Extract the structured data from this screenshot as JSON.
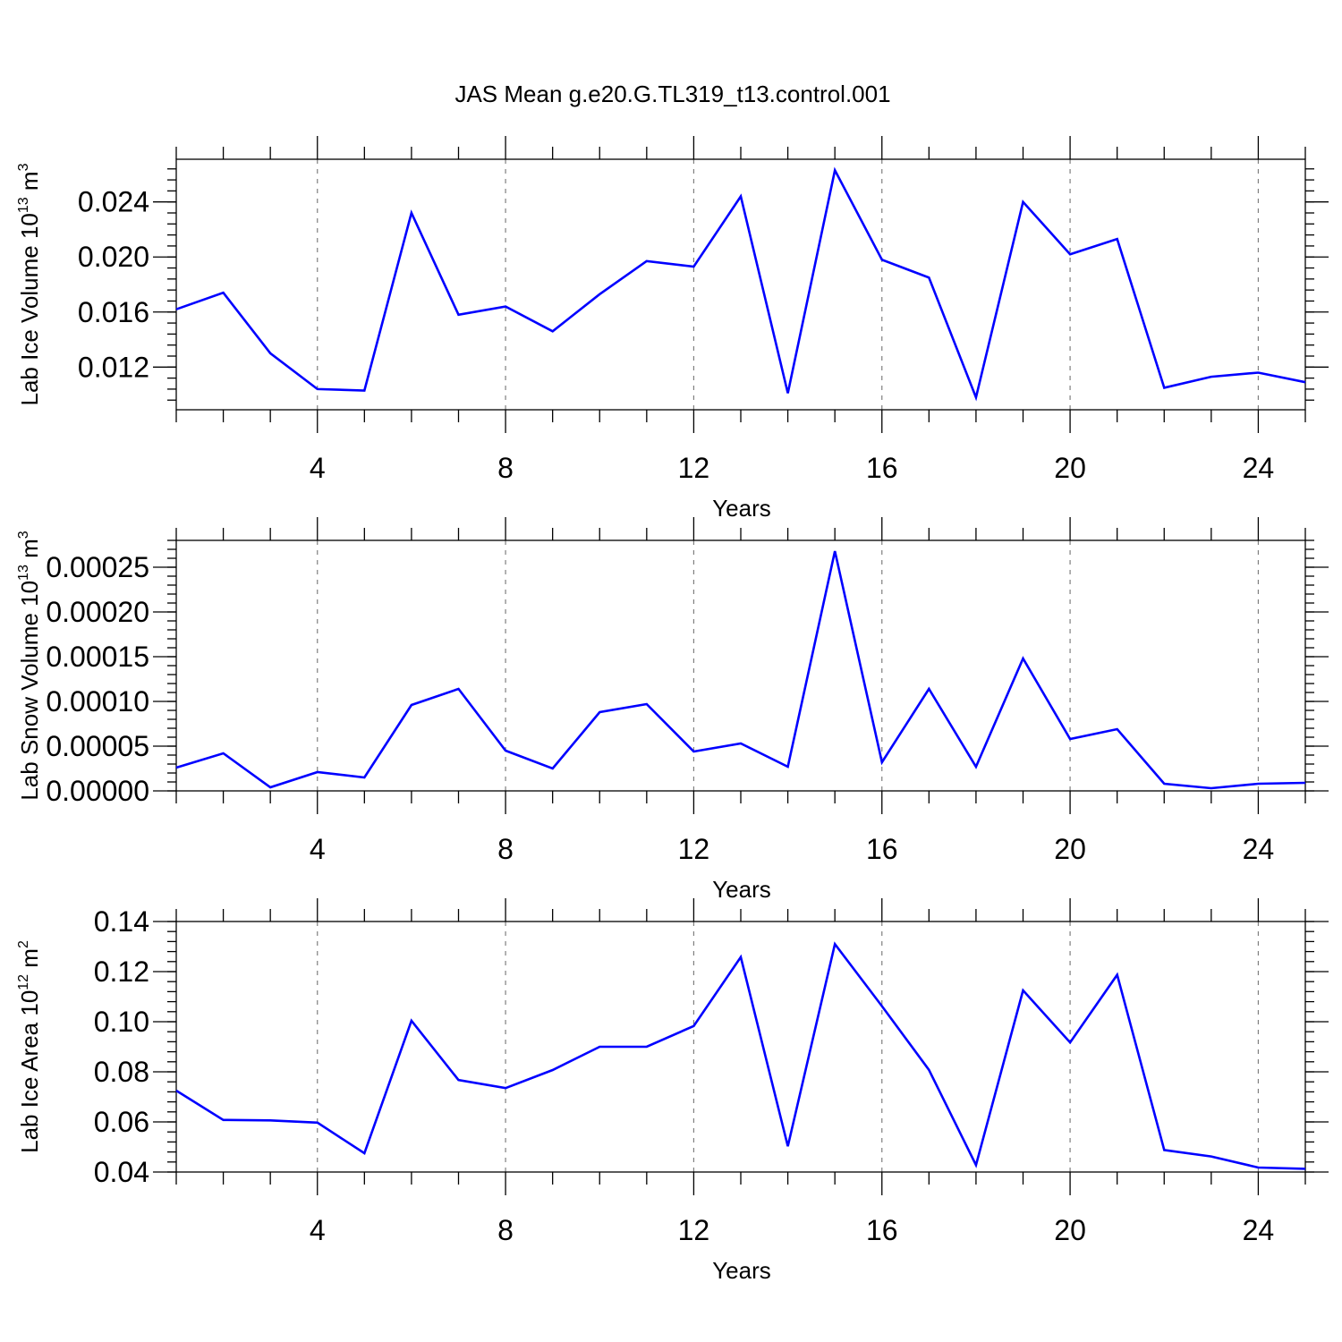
{
  "title": "JAS Mean g.e20.G.TL319_t13.control.001",
  "line_color": "#0000ff",
  "chart_data": [
    {
      "type": "line",
      "xlabel": "Years",
      "ylabel": "Lab Ice Volume 10",
      "ylabel_sup": "13",
      "ylabel_unit": " m",
      "ylabel_unit_sup": "3",
      "xlim": [
        1,
        25
      ],
      "ylim": [
        0.0089,
        0.0271
      ],
      "xticks": [
        4,
        8,
        12,
        16,
        20,
        24
      ],
      "xtick_labels": [
        "4",
        "8",
        "12",
        "16",
        "20",
        "24"
      ],
      "yticks": [
        0.012,
        0.016,
        0.02,
        0.024
      ],
      "ytick_labels": [
        "0.012",
        "0.016",
        "0.020",
        "0.024"
      ],
      "y_minor_step": 0.0008,
      "grid_x": true,
      "series": [
        {
          "x": [
            1,
            2,
            3,
            4,
            5,
            6,
            7,
            8,
            9,
            10,
            11,
            12,
            13,
            14,
            15,
            16,
            17,
            18,
            19,
            20,
            21,
            22,
            23,
            24,
            25
          ],
          "values": [
            0.0162,
            0.0174,
            0.013,
            0.0104,
            0.0103,
            0.0232,
            0.0158,
            0.0164,
            0.0146,
            0.0173,
            0.0197,
            0.0193,
            0.0244,
            0.0101,
            0.0263,
            0.0198,
            0.0185,
            0.0098,
            0.024,
            0.0202,
            0.0213,
            0.0105,
            0.0113,
            0.0116,
            0.0109
          ]
        }
      ]
    },
    {
      "type": "line",
      "xlabel": "Years",
      "ylabel": "Lab Snow Volume 10",
      "ylabel_sup": "13",
      "ylabel_unit": " m",
      "ylabel_unit_sup": "3",
      "xlim": [
        1,
        25
      ],
      "ylim": [
        0.0,
        0.00028
      ],
      "xticks": [
        4,
        8,
        12,
        16,
        20,
        24
      ],
      "xtick_labels": [
        "4",
        "8",
        "12",
        "16",
        "20",
        "24"
      ],
      "yticks": [
        0.0,
        5e-05,
        0.0001,
        0.00015,
        0.0002,
        0.00025
      ],
      "ytick_labels": [
        "0.00000",
        "0.00005",
        "0.00010",
        "0.00015",
        "0.00020",
        "0.00025"
      ],
      "y_minor_step": 1e-05,
      "grid_x": true,
      "series": [
        {
          "x": [
            1,
            2,
            3,
            4,
            5,
            6,
            7,
            8,
            9,
            10,
            11,
            12,
            13,
            14,
            15,
            16,
            17,
            18,
            19,
            20,
            21,
            22,
            23,
            24,
            25
          ],
          "values": [
            2.6e-05,
            4.2e-05,
            4e-06,
            2.1e-05,
            1.5e-05,
            9.6e-05,
            0.000114,
            4.5e-05,
            2.5e-05,
            8.8e-05,
            9.7e-05,
            4.4e-05,
            5.3e-05,
            2.7e-05,
            0.000268,
            3.2e-05,
            0.000114,
            2.7e-05,
            0.000148,
            5.8e-05,
            6.9e-05,
            8e-06,
            3e-06,
            8e-06,
            9e-06
          ]
        }
      ]
    },
    {
      "type": "line",
      "xlabel": "Years",
      "ylabel": "Lab Ice Area 10",
      "ylabel_sup": "12",
      "ylabel_unit": " m",
      "ylabel_unit_sup": "2",
      "xlim": [
        1,
        25
      ],
      "ylim": [
        0.04,
        0.14
      ],
      "xticks": [
        4,
        8,
        12,
        16,
        20,
        24
      ],
      "xtick_labels": [
        "4",
        "8",
        "12",
        "16",
        "20",
        "24"
      ],
      "yticks": [
        0.04,
        0.06,
        0.08,
        0.1,
        0.12,
        0.14
      ],
      "ytick_labels": [
        "0.04",
        "0.06",
        "0.08",
        "0.10",
        "0.12",
        "0.14"
      ],
      "y_minor_step": 0.004,
      "grid_x": true,
      "series": [
        {
          "x": [
            1,
            2,
            3,
            4,
            5,
            6,
            7,
            8,
            9,
            10,
            11,
            12,
            13,
            14,
            15,
            16,
            17,
            18,
            19,
            20,
            21,
            22,
            23,
            24,
            25
          ],
          "values": [
            0.0725,
            0.0608,
            0.0606,
            0.0597,
            0.0475,
            0.1004,
            0.0767,
            0.0735,
            0.0807,
            0.09,
            0.09,
            0.0983,
            0.1258,
            0.0503,
            0.131,
            0.1062,
            0.0808,
            0.0428,
            0.1125,
            0.0917,
            0.1187,
            0.0488,
            0.0462,
            0.0418,
            0.0413
          ]
        }
      ]
    }
  ]
}
